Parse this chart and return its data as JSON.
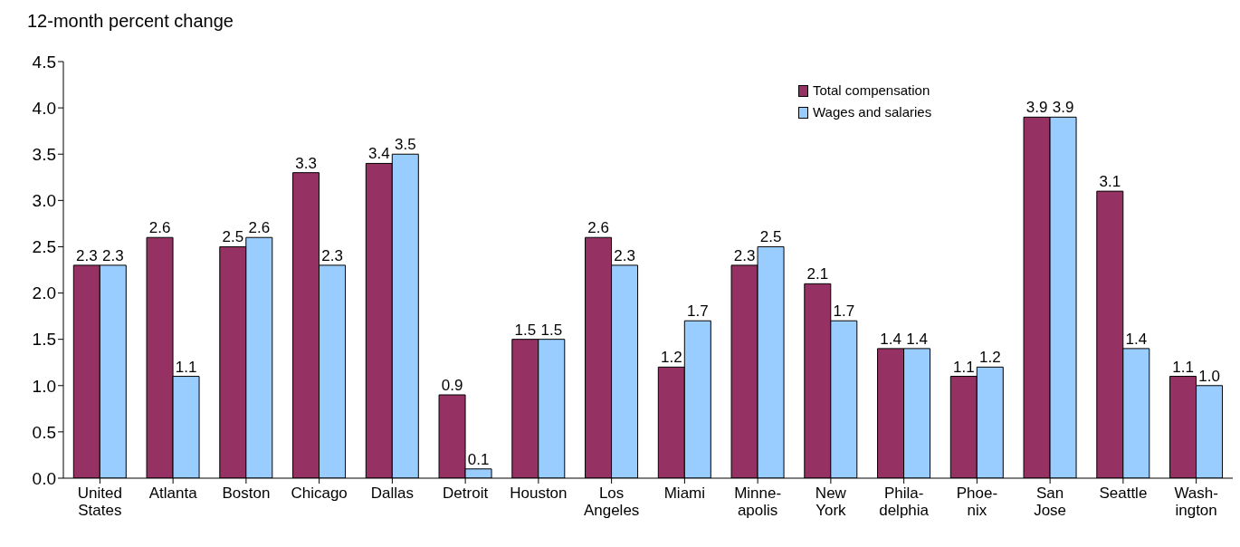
{
  "chart_data": {
    "type": "bar",
    "ylabel": "12-month percent change",
    "categories": [
      "United\nStates",
      "Atlanta",
      "Boston",
      "Chicago",
      "Dallas",
      "Detroit",
      "Houston",
      "Los\nAngeles",
      "Miami",
      "Minne-\napolis",
      "New\nYork",
      "Phila-\ndelphia",
      "Phoe-\nnix",
      "San\nJose",
      "Seattle",
      "Wash-\nington"
    ],
    "series": [
      {
        "name": "Total compensation",
        "color": "#953163",
        "values": [
          2.3,
          2.6,
          2.5,
          3.3,
          3.4,
          0.9,
          1.5,
          2.6,
          1.2,
          2.3,
          2.1,
          1.4,
          1.1,
          3.9,
          3.1,
          1.1
        ],
        "value_labels": [
          "2.3",
          "2.6",
          "2.5",
          "3.3",
          "3.4",
          "0.9",
          "1.5",
          "2.6",
          "1.2",
          "2.3",
          "2.1",
          "1.4",
          "1.1",
          "3.9",
          "3.1",
          "1.1"
        ]
      },
      {
        "name": "Wages and salaries",
        "color": "#99ccff",
        "values": [
          2.3,
          1.1,
          2.6,
          2.3,
          3.5,
          0.1,
          1.5,
          2.3,
          1.7,
          2.5,
          1.7,
          1.4,
          1.2,
          3.9,
          1.4,
          1.0
        ],
        "value_labels": [
          "2.3",
          "1.1",
          "2.6",
          "2.3",
          "3.5",
          "0.1",
          "1.5",
          "2.3",
          "1.7",
          "2.5",
          "1.7",
          "1.4",
          "1.2",
          "3.9",
          "1.4",
          "1.0"
        ]
      }
    ],
    "ylim": [
      0,
      4.5
    ],
    "yticks": [
      {
        "value": 0,
        "label": "0.0"
      },
      {
        "value": 0.5,
        "label": "0.5"
      },
      {
        "value": 1,
        "label": "1.0"
      },
      {
        "value": 1.5,
        "label": "1.5"
      },
      {
        "value": 2,
        "label": "2.0"
      },
      {
        "value": 2.5,
        "label": "2.5"
      },
      {
        "value": 3,
        "label": "3.0"
      },
      {
        "value": 3.5,
        "label": "3.5"
      },
      {
        "value": 4,
        "label": "4.0"
      },
      {
        "value": 4.5,
        "label": "4.5"
      }
    ],
    "legend": "top right"
  }
}
